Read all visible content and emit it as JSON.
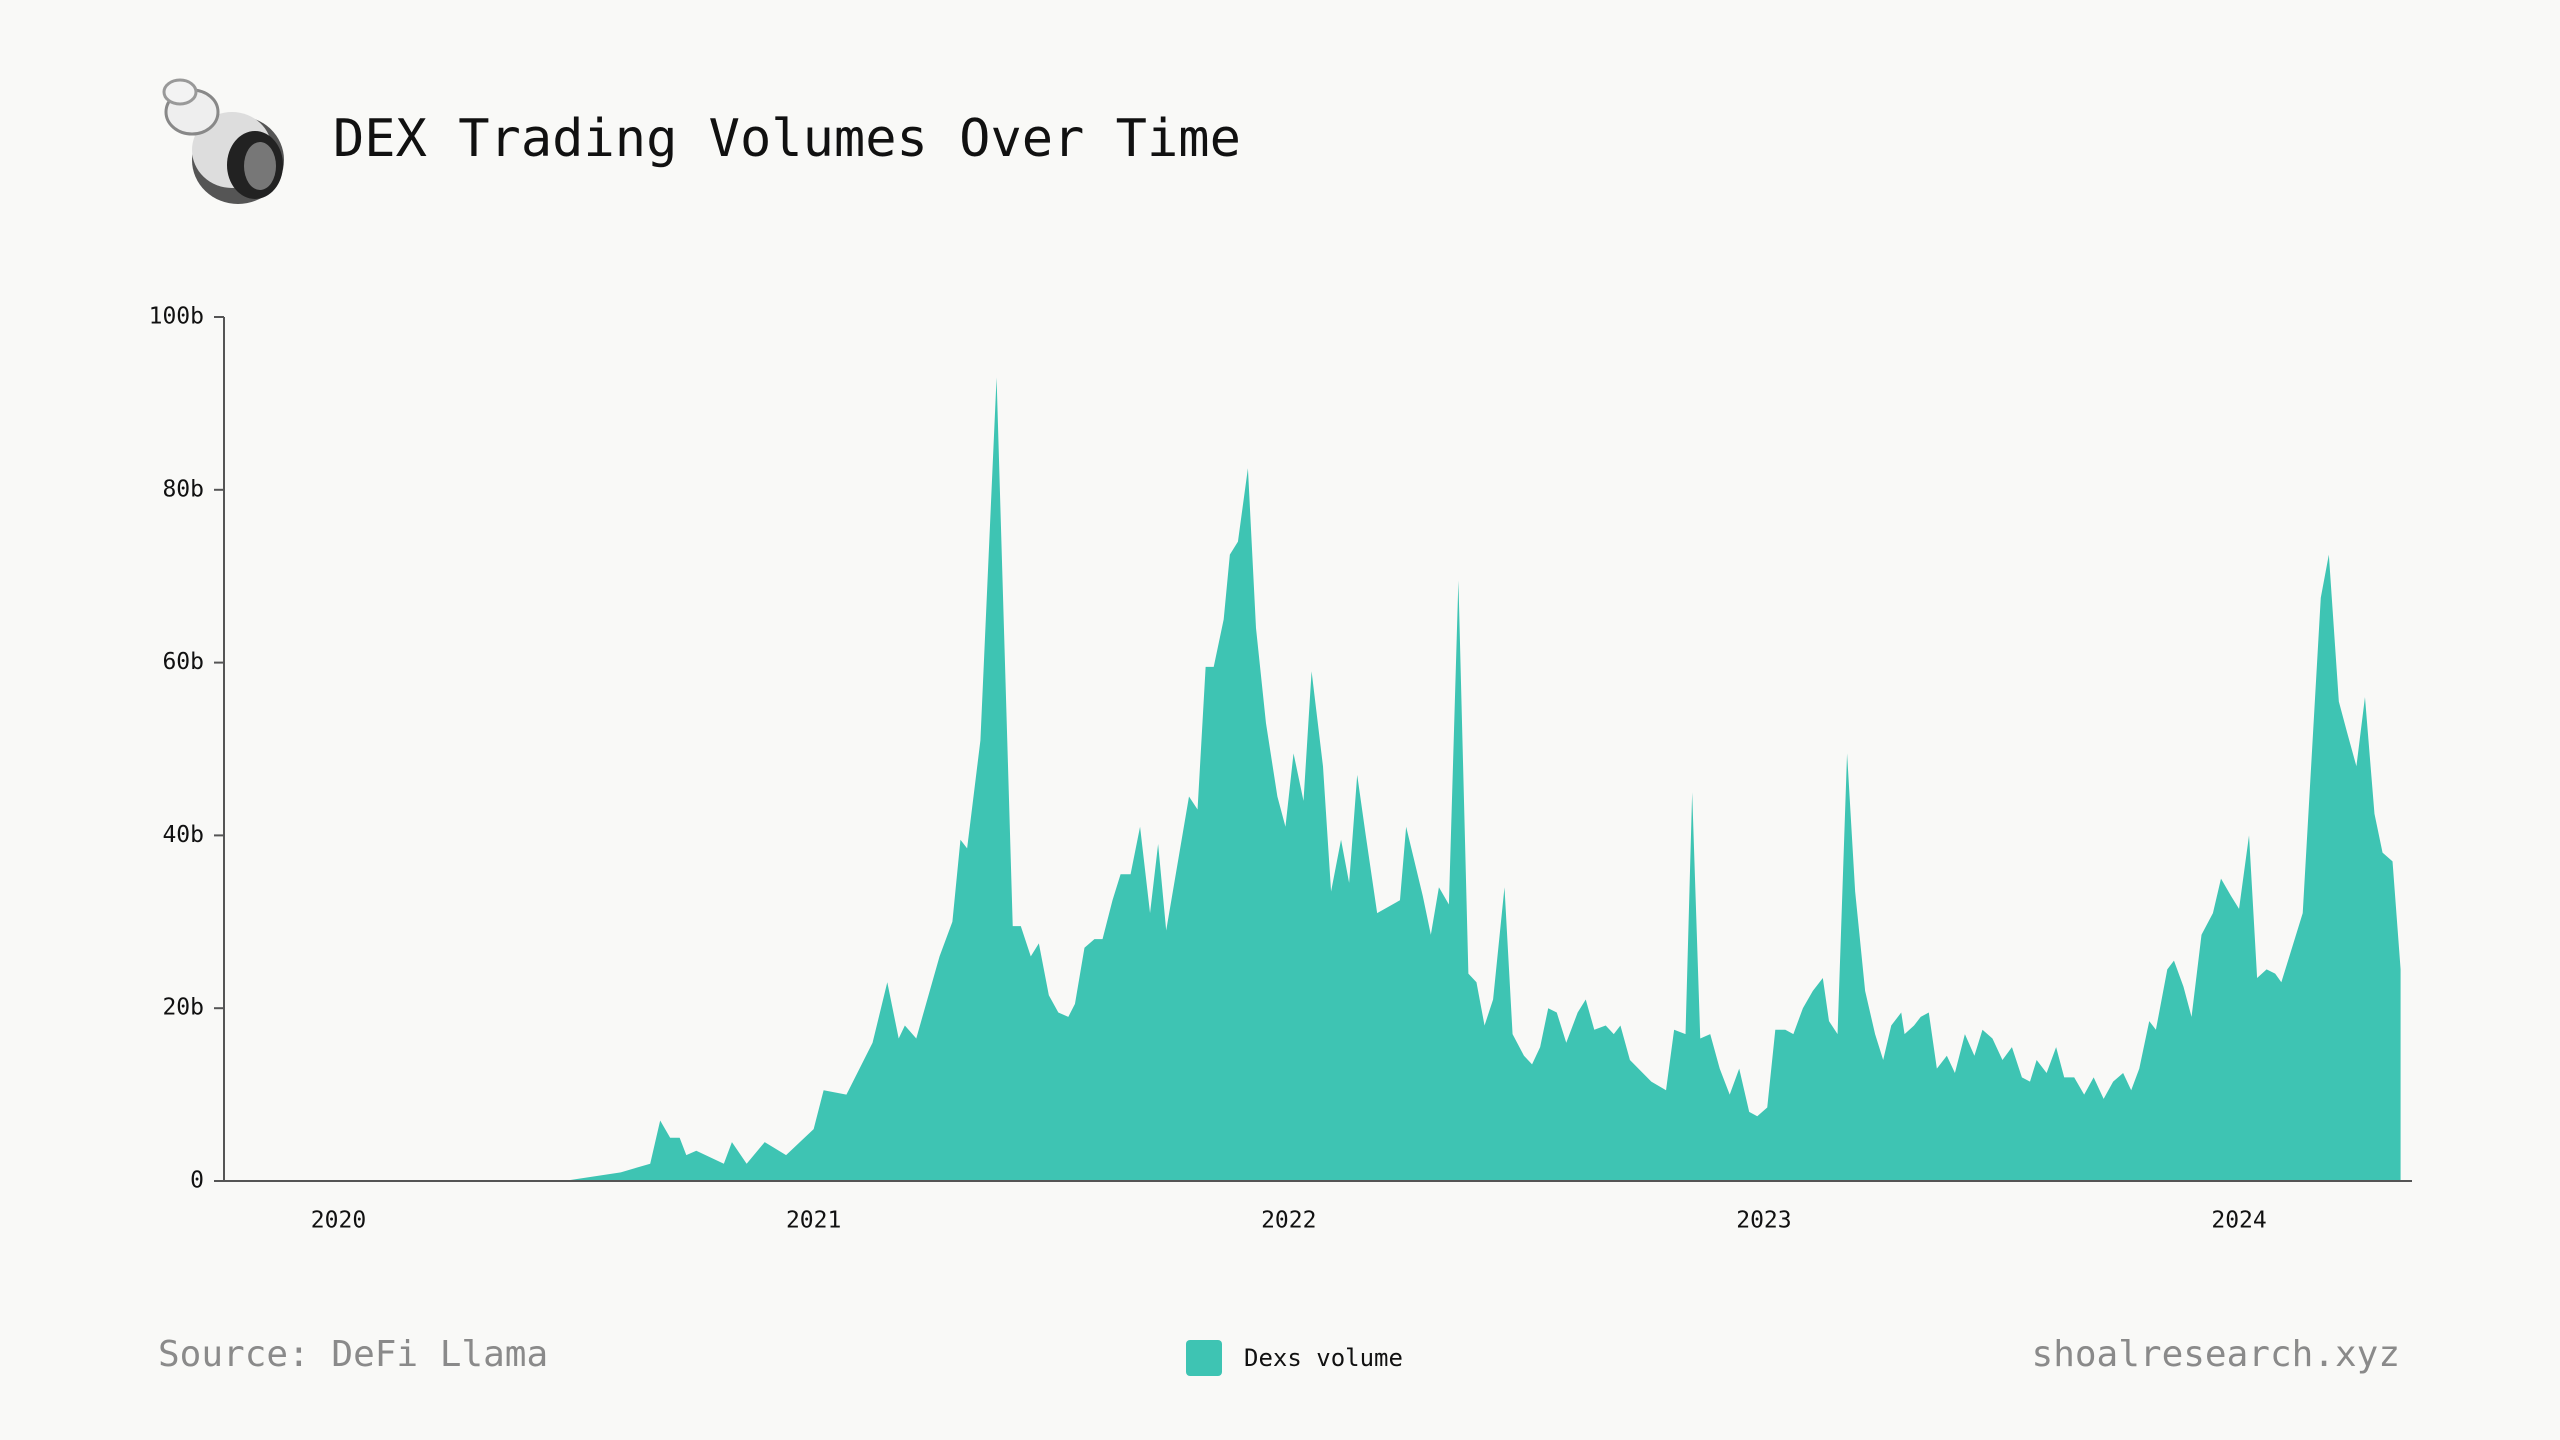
{
  "chart_data": {
    "type": "area",
    "title": "DEX Trading Volumes Over Time",
    "source": "Source: DeFi Llama",
    "credit": "shoalresearch.xyz",
    "xlim": [
      2019.759,
      2024.364
    ],
    "xticks": [
      2020,
      2021,
      2022,
      2023,
      2024
    ],
    "ylim": [
      0,
      100
    ],
    "yticks": [
      {
        "value": 0,
        "label": "0"
      },
      {
        "value": 20,
        "label": "20b"
      },
      {
        "value": 40,
        "label": "40b"
      },
      {
        "value": 60,
        "label": "60b"
      },
      {
        "value": 80,
        "label": "80b"
      },
      {
        "value": 100,
        "label": "100b"
      }
    ],
    "legend": "bottom",
    "x": [
      2019.759,
      2020.474,
      2020.594,
      2020.656,
      2020.677,
      2020.698,
      2020.718,
      2020.732,
      2020.753,
      2020.811,
      2020.828,
      2020.859,
      2020.897,
      2020.942,
      2021.0,
      2021.021,
      2021.069,
      2021.124,
      2021.155,
      2021.179,
      2021.192,
      2021.216,
      2021.234,
      2021.265,
      2021.292,
      2021.309,
      2021.323,
      2021.351,
      2021.385,
      2021.419,
      2021.436,
      2021.457,
      2021.474,
      2021.495,
      2021.515,
      2021.536,
      2021.55,
      2021.57,
      2021.591,
      2021.608,
      2021.629,
      2021.646,
      2021.667,
      2021.687,
      2021.708,
      2021.725,
      2021.742,
      2021.79,
      2021.808,
      2021.825,
      2021.842,
      2021.863,
      2021.876,
      2021.893,
      2021.914,
      2021.931,
      2021.952,
      2021.976,
      2021.993,
      2022.01,
      2022.031,
      2022.048,
      2022.072,
      2022.089,
      2022.11,
      2022.127,
      2022.144,
      2022.162,
      2022.186,
      2022.234,
      2022.247,
      2022.282,
      2022.299,
      2022.316,
      2022.337,
      2022.357,
      2022.378,
      2022.395,
      2022.412,
      2022.43,
      2022.454,
      2022.471,
      2022.495,
      2022.512,
      2022.529,
      2022.546,
      2022.564,
      2022.584,
      2022.608,
      2022.625,
      2022.643,
      2022.667,
      2022.684,
      2022.698,
      2022.718,
      2022.763,
      2022.794,
      2022.811,
      2022.835,
      2022.849,
      2022.866,
      2022.887,
      2022.907,
      2022.928,
      2022.948,
      2022.969,
      2022.986,
      2023.007,
      2023.024,
      2023.045,
      2023.062,
      2023.082,
      2023.103,
      2023.124,
      2023.137,
      2023.155,
      2023.175,
      2023.192,
      2023.213,
      2023.234,
      2023.251,
      2023.268,
      2023.289,
      2023.296,
      2023.316,
      2023.33,
      2023.347,
      2023.364,
      2023.385,
      2023.402,
      2023.423,
      2023.443,
      2023.46,
      2023.481,
      2023.502,
      2023.522,
      2023.543,
      2023.56,
      2023.574,
      2023.595,
      2023.615,
      2023.632,
      2023.653,
      2023.674,
      2023.694,
      2023.715,
      2023.735,
      2023.756,
      2023.773,
      2023.79,
      2023.811,
      2023.825,
      2023.849,
      2023.863,
      2023.883,
      2023.9,
      2023.921,
      2023.945,
      2023.962,
      2023.983,
      2024.0,
      2024.021,
      2024.038,
      2024.058,
      2024.076,
      2024.089,
      2024.134,
      2024.172,
      2024.189,
      2024.21,
      2024.227,
      2024.247,
      2024.265,
      2024.285,
      2024.302,
      2024.323,
      2024.34
    ],
    "series": [
      {
        "name": "Dexs volume",
        "color": "#3ec4b3",
        "values": [
          0,
          0,
          1,
          2,
          7,
          5,
          5,
          3,
          3.5,
          2,
          4.5,
          2,
          4.5,
          3,
          6,
          10.5,
          10,
          16,
          23,
          16.5,
          18,
          16.5,
          20,
          26,
          30,
          39.5,
          38.5,
          51,
          93,
          29.5,
          29.5,
          26,
          27.5,
          21.5,
          19.5,
          19,
          20.5,
          27,
          28,
          28,
          32.5,
          35.5,
          35.5,
          41,
          31,
          39,
          29,
          44.5,
          43,
          59.5,
          59.5,
          65,
          72.5,
          74,
          82.5,
          64,
          53,
          44.5,
          41,
          49.5,
          44,
          59,
          48,
          33.5,
          39.5,
          34.5,
          47,
          40,
          31,
          32.5,
          41,
          33,
          28.5,
          34,
          32,
          69.5,
          24,
          23,
          18,
          21,
          34,
          17,
          14.5,
          13.5,
          15.5,
          20,
          19.5,
          16,
          19.5,
          21,
          17.5,
          18,
          17,
          18,
          14,
          11.5,
          10.5,
          17.5,
          17,
          45,
          16.5,
          17,
          13,
          10,
          13,
          8,
          7.5,
          8.5,
          17.5,
          17.5,
          17,
          20,
          22,
          23.5,
          18.5,
          17,
          49.5,
          33.5,
          22,
          17,
          14,
          18,
          19.5,
          17,
          18,
          19,
          19.5,
          13,
          14.5,
          12.5,
          17,
          14.5,
          17.5,
          16.5,
          14,
          15.5,
          12,
          11.5,
          14,
          12.5,
          15.5,
          12,
          12,
          10,
          12,
          9.5,
          11.5,
          12.5,
          10.5,
          13,
          18.5,
          17.5,
          24.5,
          25.5,
          22.5,
          19,
          28.5,
          31,
          35,
          33,
          31.5,
          40,
          23.5,
          24.5,
          24,
          23,
          31,
          67.5,
          72.5,
          55.5,
          52,
          48,
          56,
          42.5,
          38,
          37,
          24.5
        ]
      }
    ]
  }
}
